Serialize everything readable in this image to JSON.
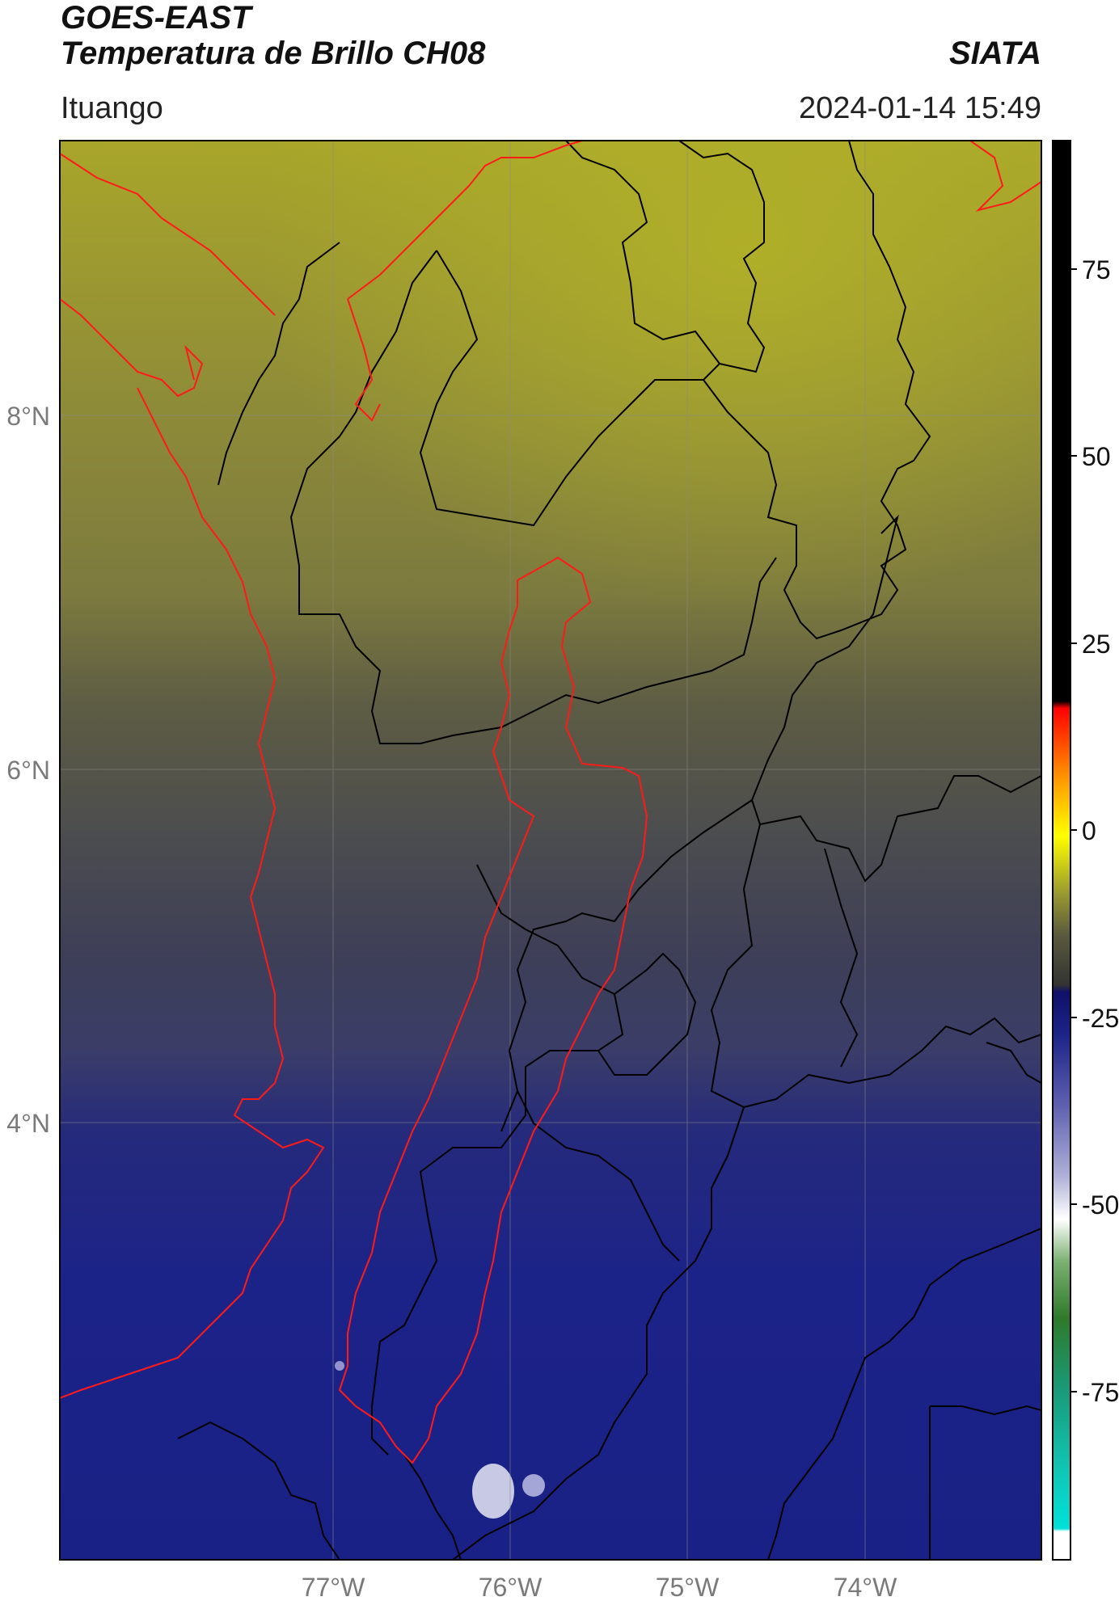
{
  "header": {
    "title_line1": "GOES-EAST",
    "title_line2": "Temperatura de Brillo CH08",
    "organization": "SIATA",
    "location": "Ituango",
    "datetime": "2024-01-14 15:49"
  },
  "map": {
    "lat_labels": [
      "8°N",
      "6°N",
      "4°N"
    ],
    "lon_labels": [
      "77°W",
      "76°W",
      "75°W",
      "74°W"
    ],
    "boundary_colors": {
      "department": "#000000",
      "highlight": "#ff1a1a",
      "grid": "#8a8a8a"
    }
  },
  "colorbar": {
    "ticks": [
      "75",
      "50",
      "25",
      "0",
      "-25",
      "-50",
      "-75"
    ],
    "scale_colors": [
      "#ffffff",
      "#00e5d8",
      "#1a9a6a",
      "#2e7a2a",
      "#9bbf8a",
      "#ffffff",
      "#8080c0",
      "#1c2488",
      "#1a1a80",
      "#4a4a4a",
      "#6e6a3a",
      "#b0b030",
      "#ffff00",
      "#ff9900",
      "#ff0000",
      "#000000"
    ]
  },
  "legend_note": ""
}
